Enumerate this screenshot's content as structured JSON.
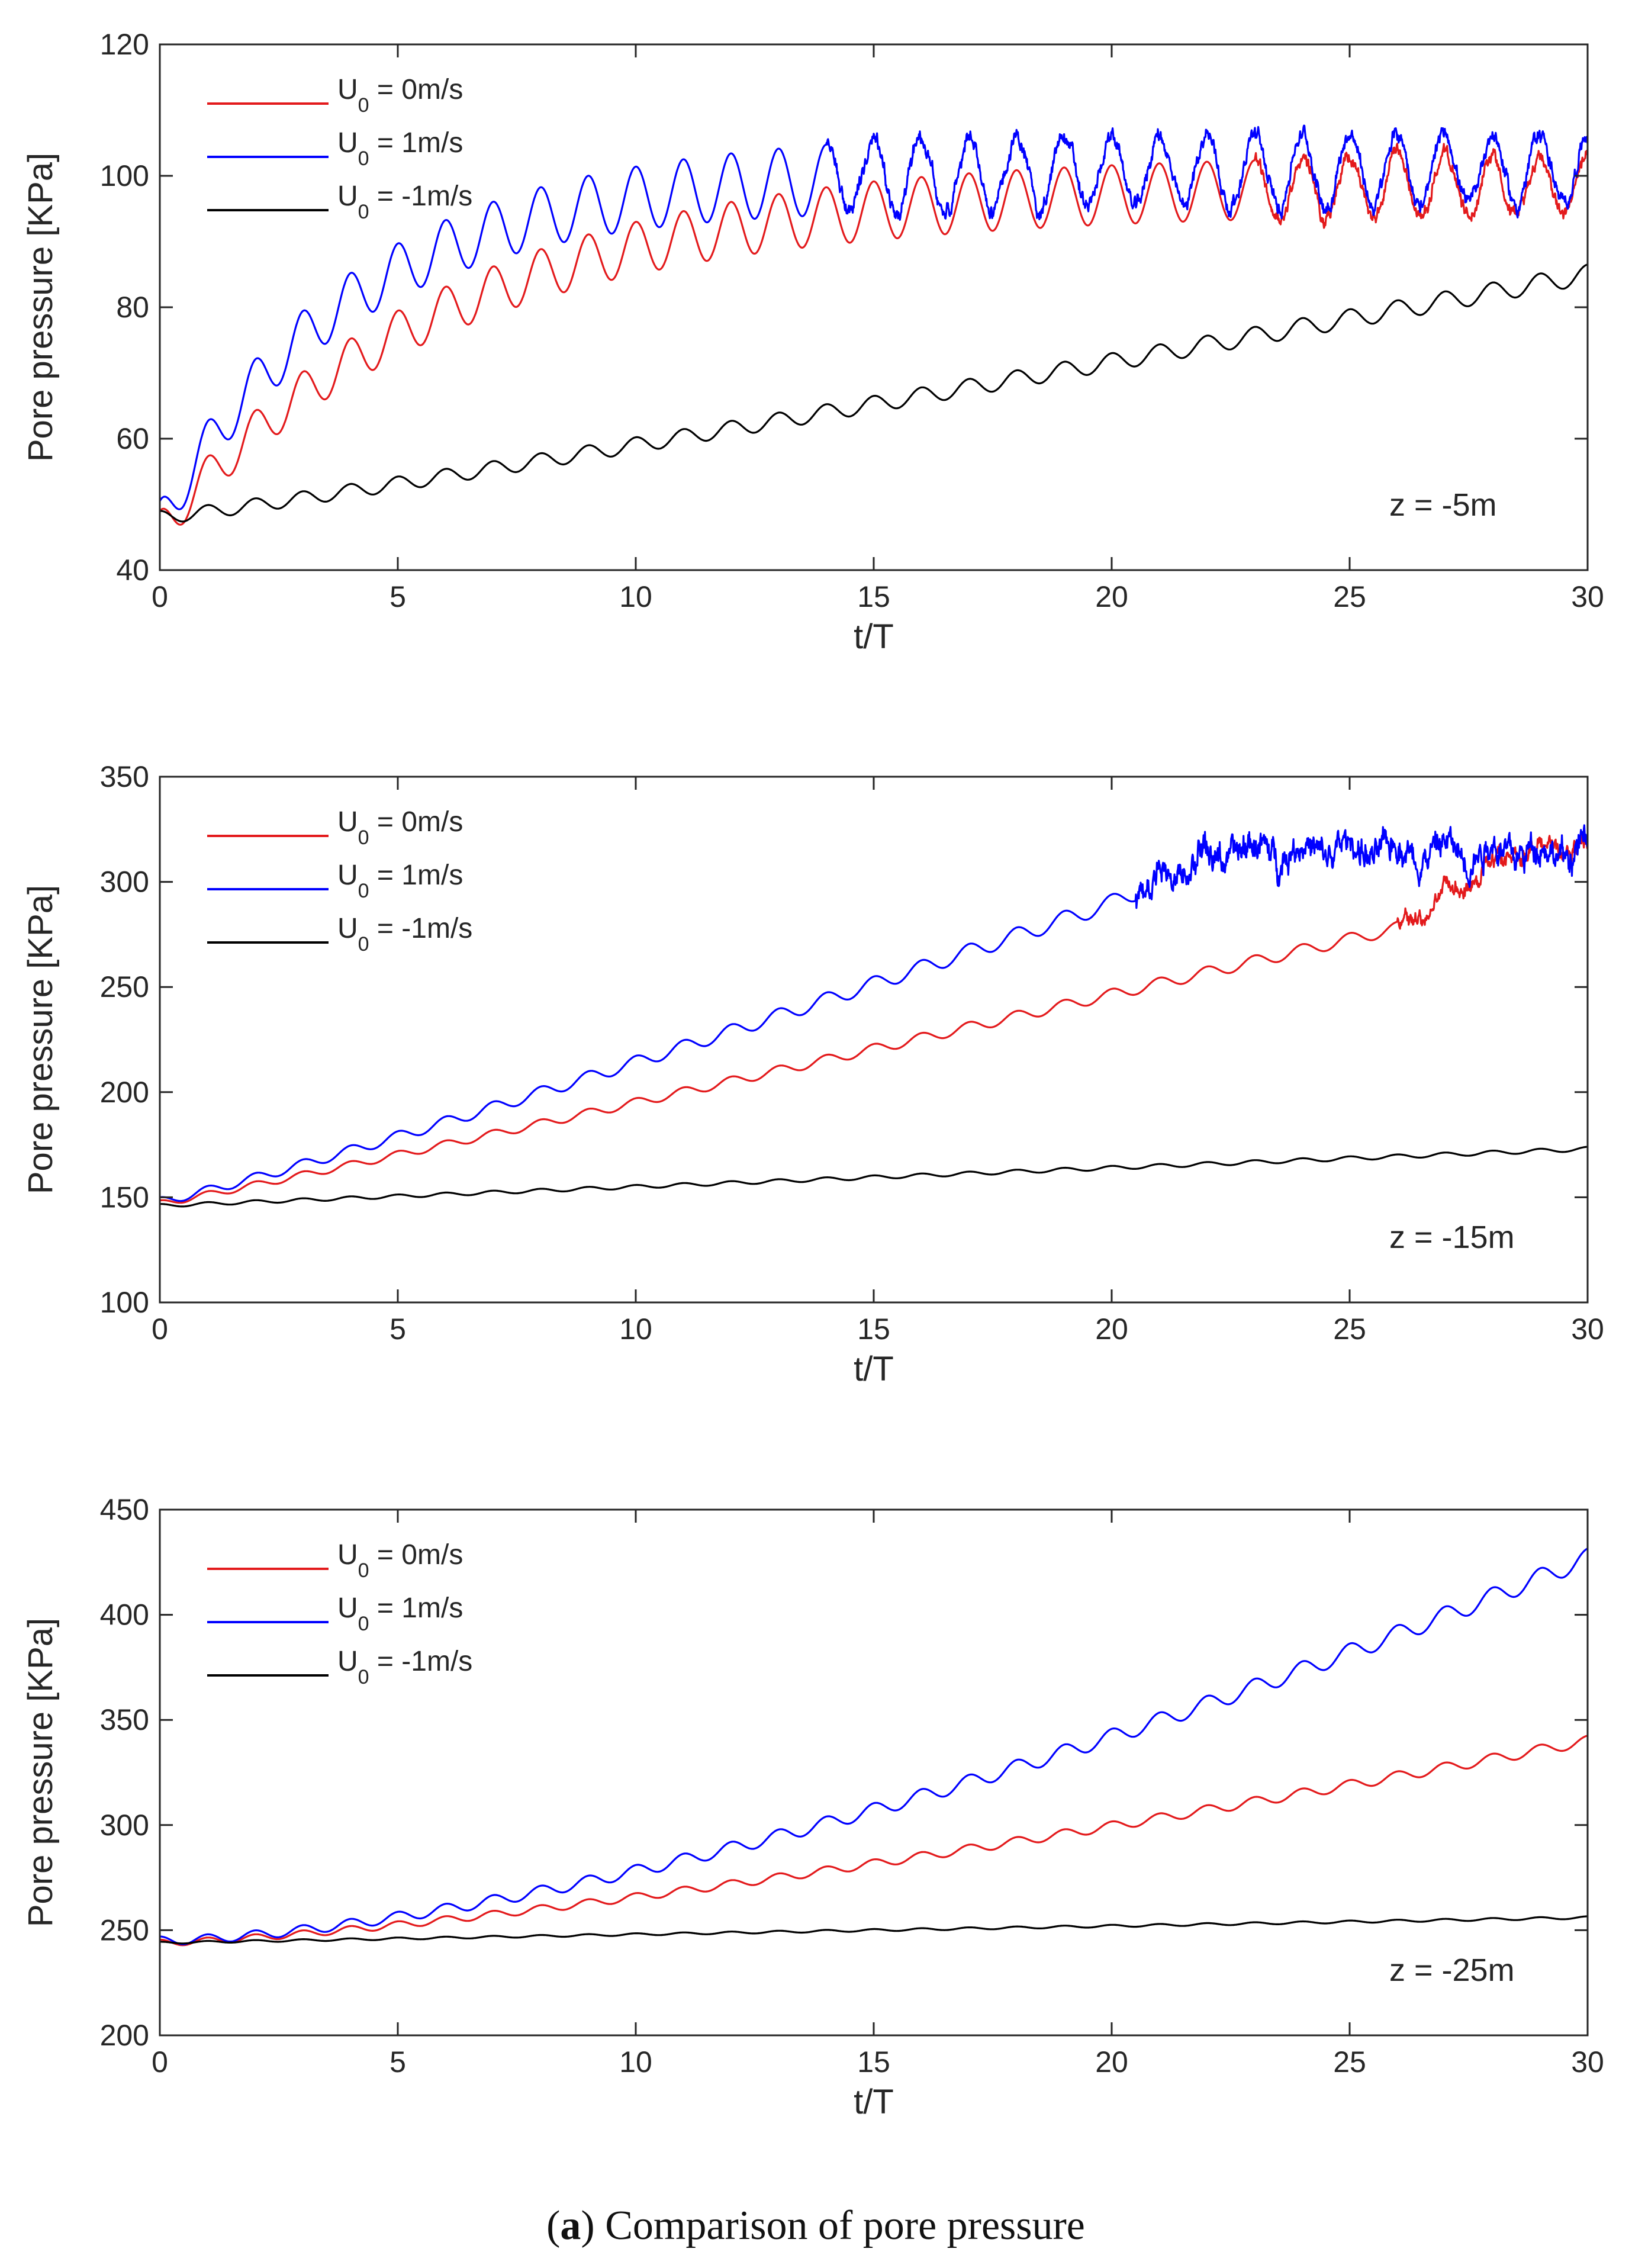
{
  "caption": {
    "label": "a",
    "text": "Comparison of pore pressure"
  },
  "chart_data": [
    {
      "type": "line",
      "xlabel": "t/T",
      "ylabel": "Pore pressure [KPa]",
      "xlim": [
        0,
        30
      ],
      "ylim": [
        40,
        120
      ],
      "xticks": [
        0,
        5,
        10,
        15,
        20,
        25,
        30
      ],
      "yticks": [
        40,
        60,
        80,
        100,
        120
      ],
      "annotation": "z = -5m",
      "legend_position": "top-left",
      "series": [
        {
          "name": "U0 = 0m/s",
          "label_main": "U",
          "label_sub": "0",
          "label_rest": " = 0m/s",
          "color": "#e31a1c",
          "model": {
            "start": 46,
            "rise": 53,
            "tau": 6.0,
            "amp_start": 3.0,
            "amp_end": 4.5,
            "noise_after": 23,
            "noise": 1.2
          }
        },
        {
          "name": "U0 = 1m/s",
          "label_main": "U",
          "label_sub": "0",
          "label_rest": " = 1m/s",
          "color": "#0000ff",
          "model": {
            "start": 47,
            "rise": 54,
            "tau": 4.0,
            "amp_start": 3.5,
            "amp_end": 5.5,
            "noise_after": 14,
            "noise": 1.4
          }
        },
        {
          "name": "U0 = -1m/s",
          "label_main": "U",
          "label_sub": "0",
          "label_rest": " = -1m/s",
          "color": "#000000",
          "model": {
            "start": 48,
            "end": 85,
            "curve": 1.1,
            "amp_start": 1.0,
            "amp_end": 1.5
          }
        }
      ]
    },
    {
      "type": "line",
      "xlabel": "t/T",
      "ylabel": "Pore pressure [KPa]",
      "xlim": [
        0,
        30
      ],
      "ylim": [
        100,
        350
      ],
      "xticks": [
        0,
        5,
        10,
        15,
        20,
        25,
        30
      ],
      "yticks": [
        100,
        150,
        200,
        250,
        300,
        350
      ],
      "annotation": "z = -15m",
      "legend_position": "top-left",
      "series": [
        {
          "name": "U0 = 0m/s",
          "label_main": "U",
          "label_sub": "0",
          "label_rest": " = 0m/s",
          "color": "#e31a1c",
          "model": {
            "start": 147,
            "end": 278,
            "end_x": 26,
            "curve": 1.05,
            "amp_start": 1.5,
            "amp_end": 3.0,
            "plateau": 316,
            "noise_after": 26,
            "noise": 4.5
          }
        },
        {
          "name": "U0 = 1m/s",
          "label_main": "U",
          "label_sub": "0",
          "label_rest": " = 1m/s",
          "color": "#0000ff",
          "model": {
            "start": 148,
            "end": 290,
            "end_x": 20,
            "curve": 1.1,
            "amp_start": 2.0,
            "amp_end": 4.0,
            "plateau": 315,
            "noise_after": 20.5,
            "noise": 8.0
          }
        },
        {
          "name": "U0 = -1m/s",
          "label_main": "U",
          "label_sub": "0",
          "label_rest": " = -1m/s",
          "color": "#000000",
          "model": {
            "start": 146,
            "end": 173,
            "curve": 1.0,
            "amp_start": 0.8,
            "amp_end": 1.0
          }
        }
      ]
    },
    {
      "type": "line",
      "xlabel": "t/T",
      "ylabel": "Pore pressure [KPa]",
      "xlim": [
        0,
        30
      ],
      "ylim": [
        200,
        450
      ],
      "xticks": [
        0,
        5,
        10,
        15,
        20,
        25,
        30
      ],
      "yticks": [
        200,
        250,
        300,
        350,
        400,
        450
      ],
      "annotation": "z = -25m",
      "legend_position": "top-left",
      "series": [
        {
          "name": "U0 = 0m/s",
          "label_main": "U",
          "label_sub": "0",
          "label_rest": " = 0m/s",
          "color": "#e31a1c",
          "model": {
            "start": 244,
            "end": 340,
            "curve": 1.35,
            "amp_start": 1.5,
            "amp_end": 2.5
          }
        },
        {
          "name": "U0 = 1m/s",
          "label_main": "U",
          "label_sub": "0",
          "label_rest": " = 1m/s",
          "color": "#0000ff",
          "model": {
            "start": 245,
            "end": 427,
            "curve": 1.55,
            "amp_start": 2.0,
            "amp_end": 4.5
          }
        },
        {
          "name": "U0 = -1m/s",
          "label_main": "U",
          "label_sub": "0",
          "label_rest": " = -1m/s",
          "color": "#000000",
          "model": {
            "start": 244,
            "end": 256,
            "curve": 1.0,
            "amp_start": 0.5,
            "amp_end": 0.6
          }
        }
      ]
    }
  ]
}
